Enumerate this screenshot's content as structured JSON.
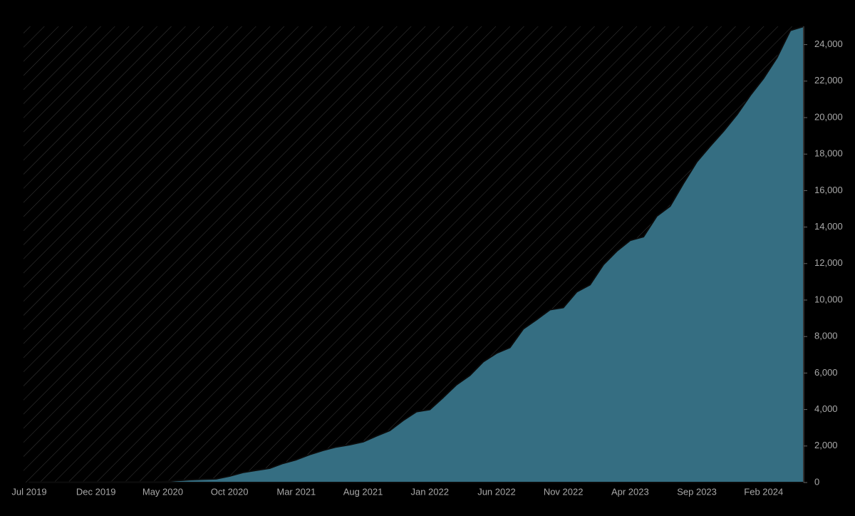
{
  "chart_data": {
    "type": "area",
    "color": "#356e82",
    "x": [
      "2019-07",
      "2019-08",
      "2019-09",
      "2019-10",
      "2019-11",
      "2019-12",
      "2020-01",
      "2020-02",
      "2020-03",
      "2020-04",
      "2020-05",
      "2020-06",
      "2020-07",
      "2020-08",
      "2020-09",
      "2020-10",
      "2020-11",
      "2020-12",
      "2021-01",
      "2021-02",
      "2021-03",
      "2021-04",
      "2021-05",
      "2021-06",
      "2021-07",
      "2021-08",
      "2021-09",
      "2021-10",
      "2021-11",
      "2021-12",
      "2022-01",
      "2022-02",
      "2022-03",
      "2022-04",
      "2022-05",
      "2022-06",
      "2022-07",
      "2022-08",
      "2022-09",
      "2022-10",
      "2022-11",
      "2022-12",
      "2023-01",
      "2023-02",
      "2023-03",
      "2023-04",
      "2023-05",
      "2023-06",
      "2023-07",
      "2023-08",
      "2023-09",
      "2023-10",
      "2023-11",
      "2023-12",
      "2024-01",
      "2024-02",
      "2024-03",
      "2024-04",
      "2024-05"
    ],
    "values": [
      20,
      20,
      20,
      20,
      20,
      20,
      30,
      30,
      30,
      30,
      40,
      100,
      150,
      180,
      200,
      350,
      550,
      670,
      780,
      1050,
      1250,
      1530,
      1760,
      1950,
      2070,
      2230,
      2550,
      2850,
      3400,
      3880,
      4000,
      4660,
      5360,
      5870,
      6620,
      7090,
      7400,
      8420,
      8930,
      9470,
      9590,
      10450,
      10840,
      11940,
      12680,
      13270,
      13470,
      14600,
      15150,
      16400,
      17580,
      18440,
      19260,
      20160,
      21220,
      22160,
      23290,
      24780,
      25000
    ],
    "xlim": [
      "2019-07",
      "2024-05"
    ],
    "xticks": [
      {
        "value": "2019-07",
        "label": "Jul 2019"
      },
      {
        "value": "2019-12",
        "label": "Dec 2019"
      },
      {
        "value": "2020-05",
        "label": "May 2020"
      },
      {
        "value": "2020-10",
        "label": "Oct 2020"
      },
      {
        "value": "2021-03",
        "label": "Mar 2021"
      },
      {
        "value": "2021-08",
        "label": "Aug 2021"
      },
      {
        "value": "2022-01",
        "label": "Jan 2022"
      },
      {
        "value": "2022-06",
        "label": "Jun 2022"
      },
      {
        "value": "2022-11",
        "label": "Nov 2022"
      },
      {
        "value": "2023-04",
        "label": "Apr 2023"
      },
      {
        "value": "2023-09",
        "label": "Sep 2023"
      },
      {
        "value": "2024-02",
        "label": "Feb 2024"
      }
    ],
    "ylim": [
      0,
      25000
    ],
    "yticks": [
      0,
      {
        "value": 2000,
        "label": "2,000"
      },
      {
        "value": 4000,
        "label": "4,000"
      },
      {
        "value": 6000,
        "label": "6,000"
      },
      {
        "value": 8000,
        "label": "8,000"
      },
      {
        "value": 10000,
        "label": "10,000"
      },
      {
        "value": 12000,
        "label": "12,000"
      },
      {
        "value": 14000,
        "label": "14,000"
      },
      {
        "value": 16000,
        "label": "16,000"
      },
      {
        "value": 18000,
        "label": "18,000"
      },
      {
        "value": 20000,
        "label": "20,000"
      },
      {
        "value": 22000,
        "label": "22,000"
      },
      {
        "value": 24000,
        "label": "24,000"
      }
    ]
  }
}
